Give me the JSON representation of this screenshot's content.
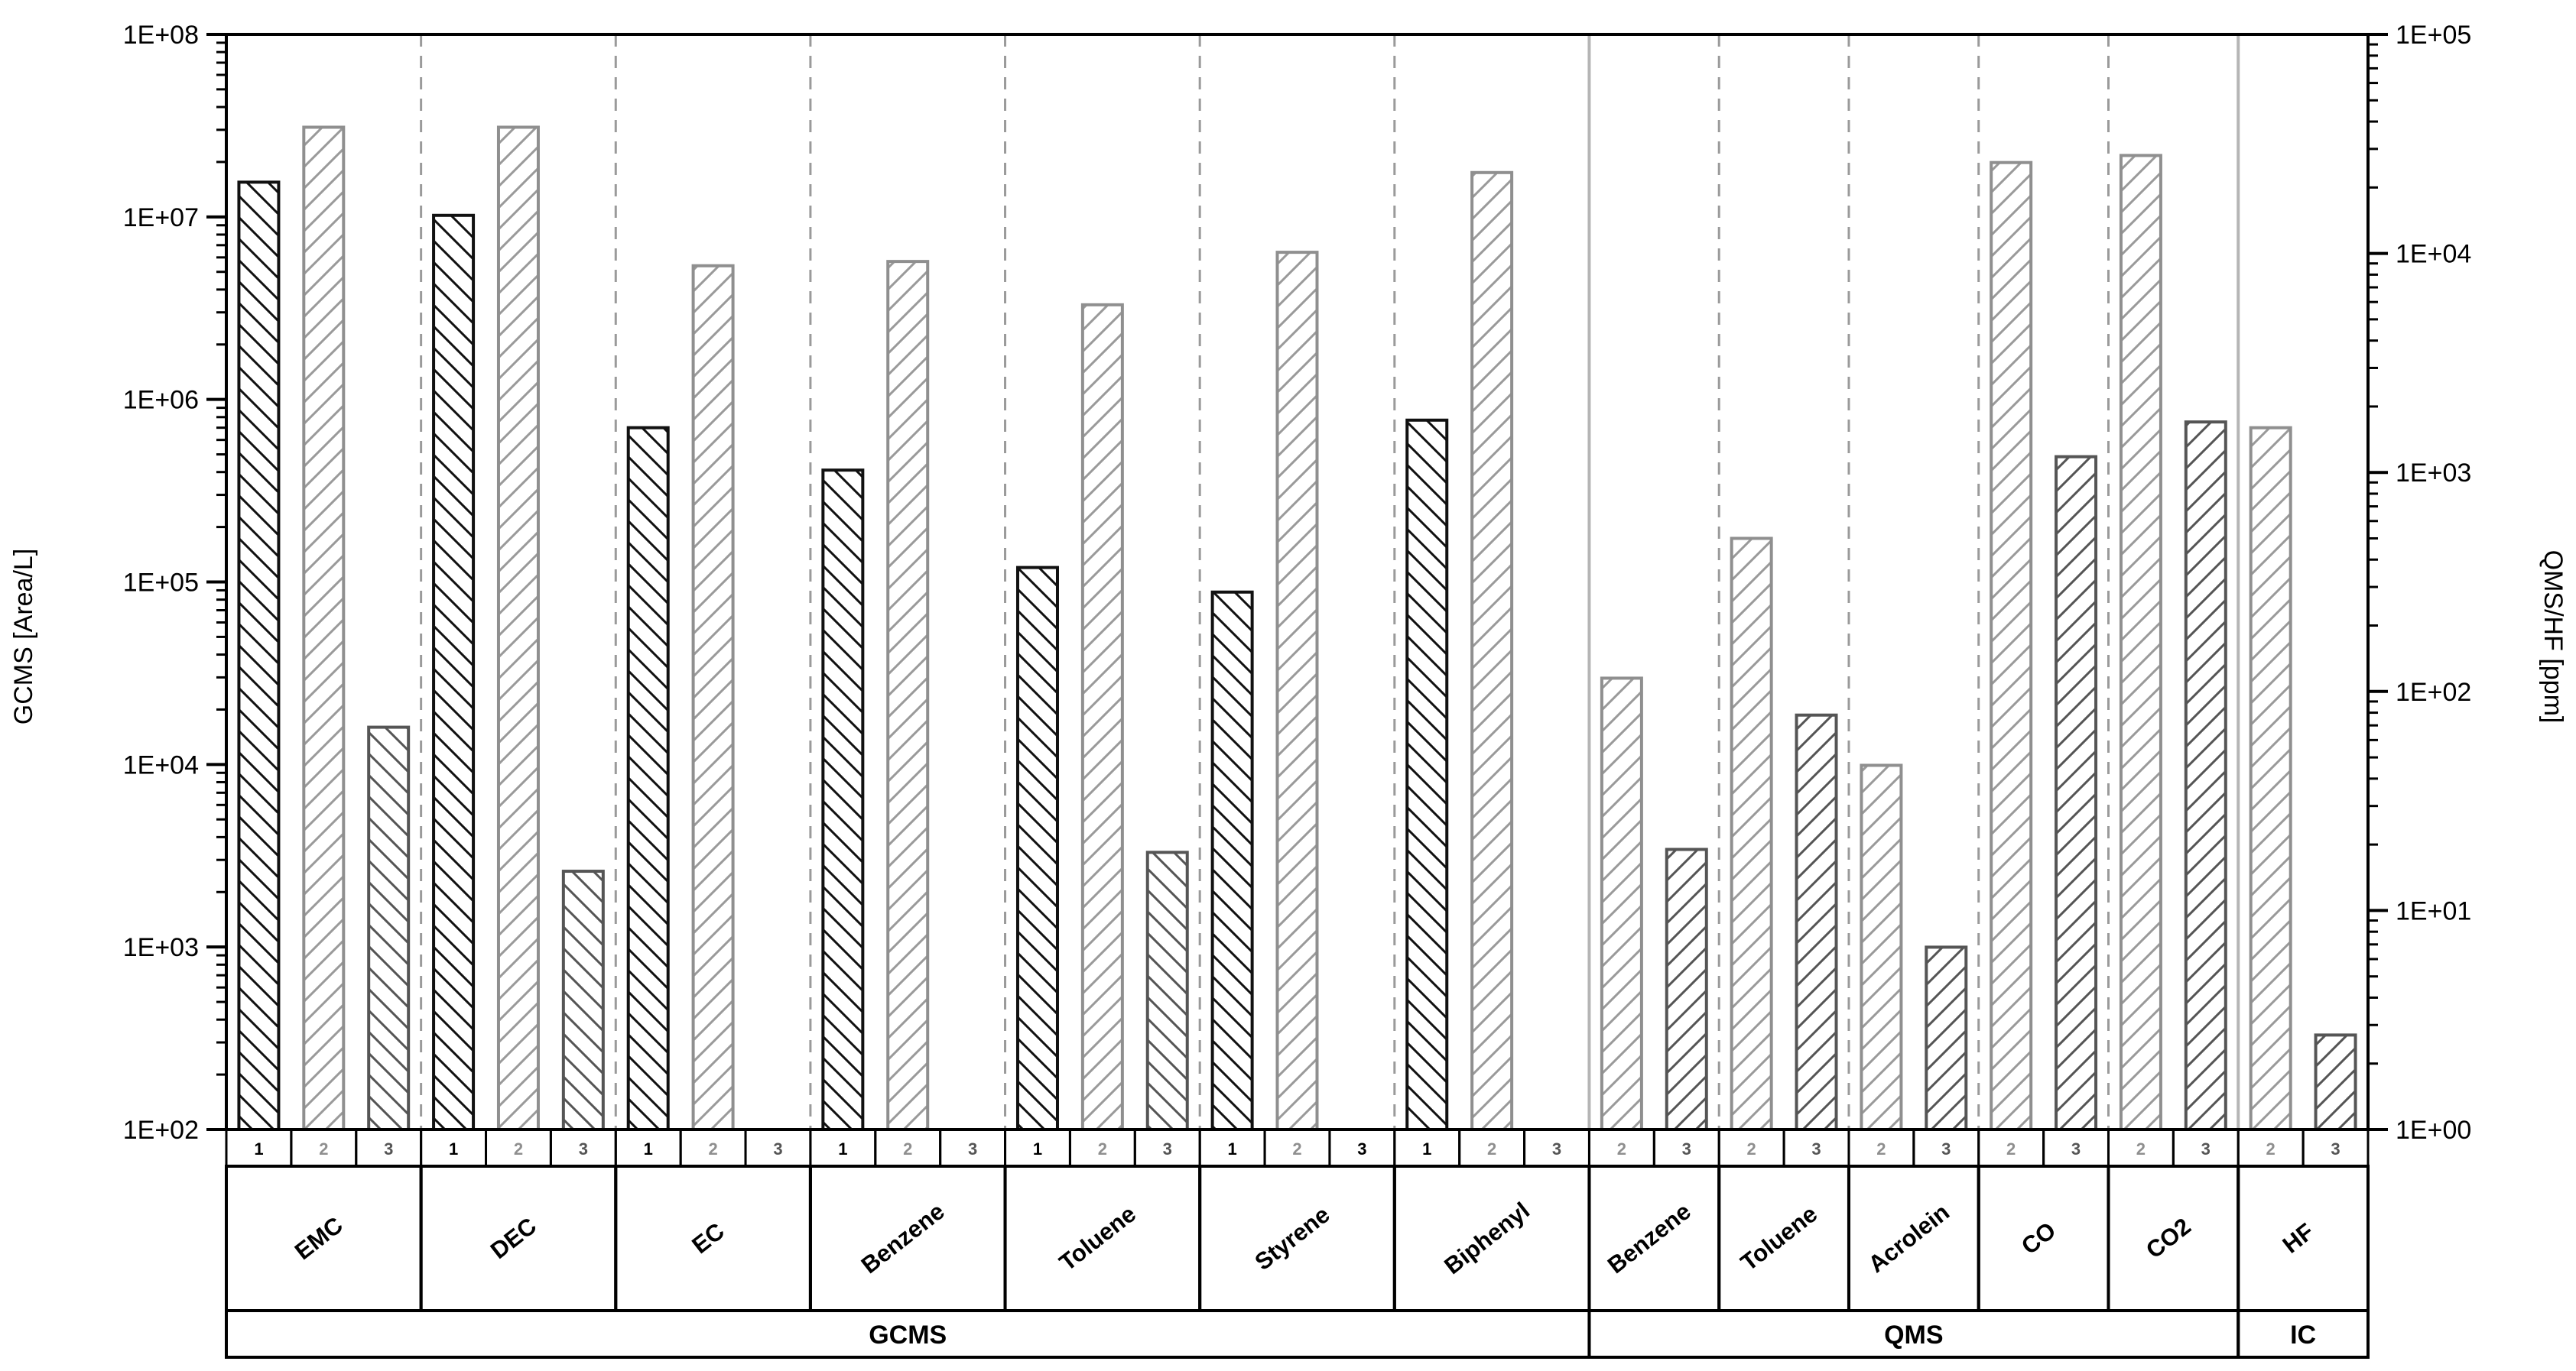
{
  "chart_data": {
    "type": "bar",
    "y_scale": "log",
    "left_axis": {
      "label": "GCMS [Area/L]",
      "range": [
        100,
        100000000
      ],
      "tick_labels": [
        "1E+02",
        "1E+03",
        "1E+04",
        "1E+05",
        "1E+06",
        "1E+07",
        "1E+08"
      ]
    },
    "right_axis": {
      "label": "QMS/HF [ppm]",
      "range": [
        1,
        100000
      ],
      "tick_labels": [
        "1E+00",
        "1E+01",
        "1E+02",
        "1E+03",
        "1E+04",
        "1E+05"
      ]
    },
    "groups": [
      {
        "name": "GCMS",
        "axis": "left",
        "components": [
          {
            "name": "EMC",
            "slots": [
              {
                "label": "1",
                "value": 15500000
              },
              {
                "label": "2",
                "value": 31000000
              },
              {
                "label": "3",
                "value": 16000
              }
            ]
          },
          {
            "name": "DEC",
            "slots": [
              {
                "label": "1",
                "value": 10200000
              },
              {
                "label": "2",
                "value": 31000000
              },
              {
                "label": "3",
                "value": 2600
              }
            ]
          },
          {
            "name": "EC",
            "slots": [
              {
                "label": "1",
                "value": 700000
              },
              {
                "label": "2",
                "value": 5400000
              },
              {
                "label": "3",
                "value": null
              }
            ]
          },
          {
            "name": "Benzene",
            "slots": [
              {
                "label": "1",
                "value": 410000
              },
              {
                "label": "2",
                "value": 5700000
              },
              {
                "label": "3",
                "value": null
              }
            ]
          },
          {
            "name": "Toluene",
            "slots": [
              {
                "label": "1",
                "value": 120000
              },
              {
                "label": "2",
                "value": 3300000
              },
              {
                "label": "3",
                "value": 3300
              }
            ]
          },
          {
            "name": "Styrene",
            "slots": [
              {
                "label": "1",
                "value": 88000
              },
              {
                "label": "2",
                "value": 6400000
              },
              {
                "label": "3",
                "value": null
              }
            ]
          },
          {
            "name": "Biphenyl",
            "slots": [
              {
                "label": "1",
                "value": 770000
              },
              {
                "label": "2",
                "value": 17500000
              },
              {
                "label": "3",
                "value": null
              }
            ]
          }
        ]
      },
      {
        "name": "QMS",
        "axis": "right",
        "components": [
          {
            "name": "Benzene",
            "slots": [
              {
                "label": "2",
                "value": 115
              },
              {
                "label": "3",
                "value": 19
              }
            ]
          },
          {
            "name": "Toluene",
            "slots": [
              {
                "label": "2",
                "value": 500
              },
              {
                "label": "3",
                "value": 78
              }
            ]
          },
          {
            "name": "Acrolein",
            "slots": [
              {
                "label": "2",
                "value": 46
              },
              {
                "label": "3",
                "value": 6.8
              }
            ]
          },
          {
            "name": "CO",
            "slots": [
              {
                "label": "2",
                "value": 26000
              },
              {
                "label": "3",
                "value": 1180
              }
            ]
          },
          {
            "name": "CO2",
            "slots": [
              {
                "label": "2",
                "value": 28000
              },
              {
                "label": "3",
                "value": 1700
              }
            ]
          }
        ]
      },
      {
        "name": "IC",
        "axis": "right",
        "components": [
          {
            "name": "HF",
            "slots": [
              {
                "label": "2",
                "value": 1600
              },
              {
                "label": "3",
                "value": 2.7
              }
            ]
          }
        ]
      }
    ],
    "slot_styles": {
      "1": {
        "stroke": "#111111",
        "hatch": "back"
      },
      "2": {
        "stroke": "#8f8f8f",
        "hatch": "fwd"
      },
      "3": {
        "stroke": "#555555",
        "hatch": "auto"
      }
    },
    "grid": "dashed vertical separators between components"
  }
}
